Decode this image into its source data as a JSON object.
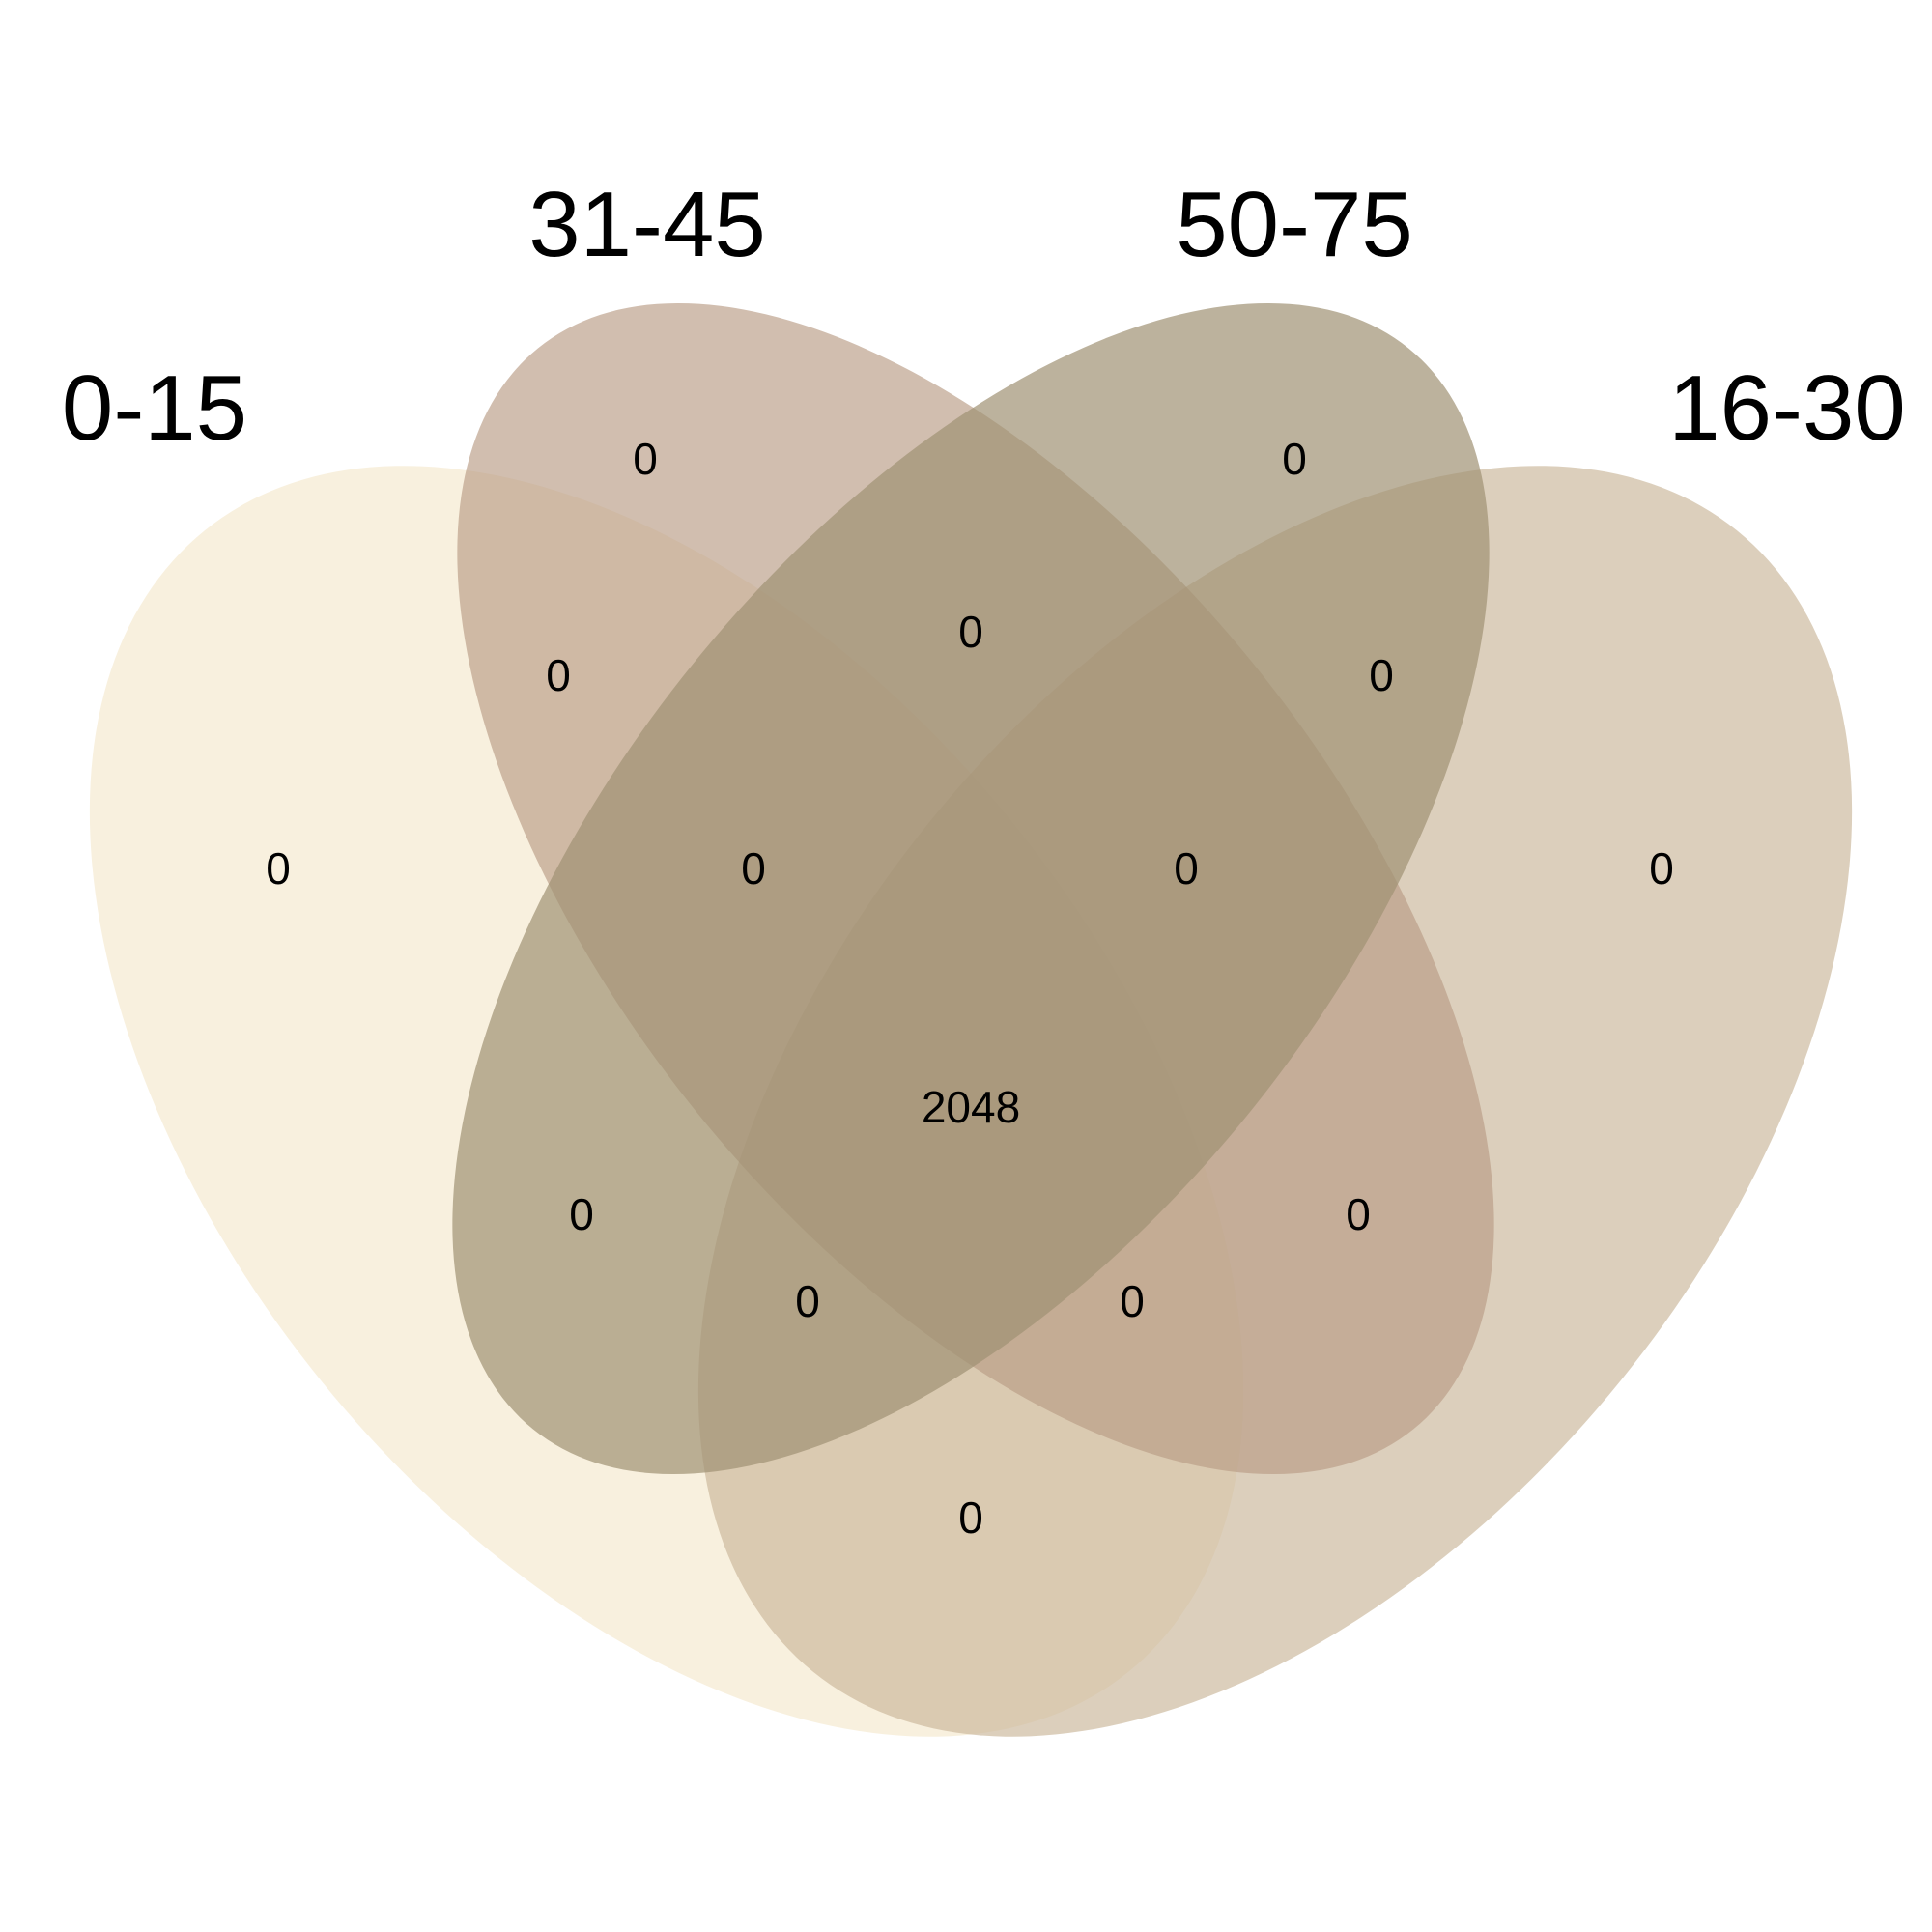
{
  "diagram": {
    "type": "venn-4",
    "sets": [
      {
        "id": "A",
        "label": "0-15",
        "color": "#F0DDB5",
        "opacity": 0.45
      },
      {
        "id": "B",
        "label": "31-45",
        "color": "#B99B84",
        "opacity": 0.65
      },
      {
        "id": "C",
        "label": "50-75",
        "color": "#A09173",
        "opacity": 0.7
      },
      {
        "id": "D",
        "label": "16-30",
        "color": "#C9B598",
        "opacity": 0.65
      }
    ],
    "regions": [
      {
        "sets": "A",
        "count": "0"
      },
      {
        "sets": "B",
        "count": "0"
      },
      {
        "sets": "C",
        "count": "0"
      },
      {
        "sets": "D",
        "count": "0"
      },
      {
        "sets": "A B",
        "count": "0"
      },
      {
        "sets": "B C",
        "count": "0"
      },
      {
        "sets": "C D",
        "count": "0"
      },
      {
        "sets": "A B C",
        "count": "0"
      },
      {
        "sets": "B C D",
        "count": "0"
      },
      {
        "sets": "A B C D",
        "count": "2048"
      },
      {
        "sets": "A C",
        "count": "0"
      },
      {
        "sets": "B D",
        "count": "0"
      },
      {
        "sets": "A C D",
        "count": "0"
      },
      {
        "sets": "A B D",
        "count": "0"
      },
      {
        "sets": "A D",
        "count": "0"
      }
    ]
  }
}
